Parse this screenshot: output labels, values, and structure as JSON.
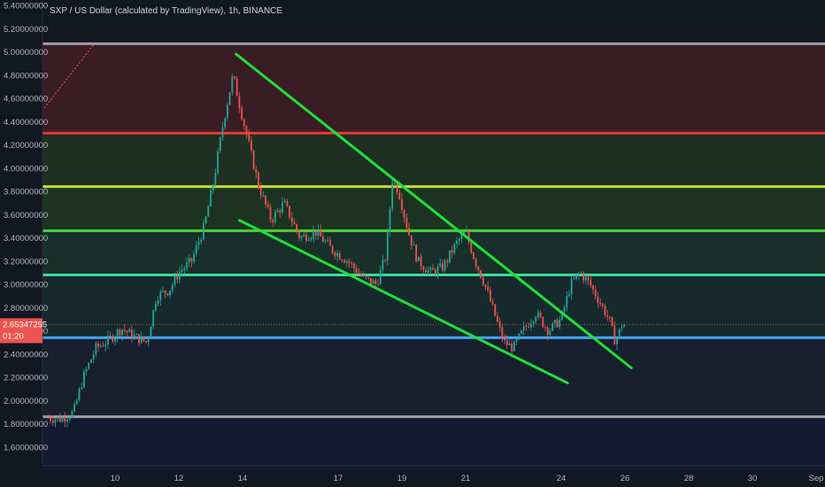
{
  "header": {
    "title": "SXP / US Dollar (calculated by TradingView), 1h, BINANCE"
  },
  "price_tag": {
    "value": "2.65347255",
    "countdown": "01:20"
  },
  "colors": {
    "background": "#131722",
    "up_candle": "#26a69a",
    "down_candle": "#ef5350",
    "trendline": "#1fe03a",
    "price_tag": "#ef5350"
  },
  "chart_data": {
    "type": "candlestick",
    "title": "SXP / US Dollar (calculated by TradingView), 1h, BINANCE",
    "ylim": [
      1.4,
      5.4
    ],
    "y_scale": "linear",
    "grid": false,
    "y_ticks": [
      "5.40000000",
      "5.20000000",
      "5.00000000",
      "4.80000000",
      "4.60000000",
      "4.40000000",
      "4.20000000",
      "4.00000000",
      "3.80000000",
      "3.60000000",
      "3.40000000",
      "3.20000000",
      "3.00000000",
      "2.80000000",
      "2.60000000",
      "2.40000000",
      "2.20000000",
      "2.00000000",
      "1.80000000",
      "1.60000000"
    ],
    "x_ticks": [
      {
        "label": "10",
        "day": 10
      },
      {
        "label": "12",
        "day": 12
      },
      {
        "label": "14",
        "day": 14
      },
      {
        "label": "17",
        "day": 17
      },
      {
        "label": "19",
        "day": 19
      },
      {
        "label": "21",
        "day": 21
      },
      {
        "label": "24",
        "day": 24
      },
      {
        "label": "26",
        "day": 26
      },
      {
        "label": "28",
        "day": 28
      },
      {
        "label": "30",
        "day": 30
      },
      {
        "label": "Sep",
        "day": 32
      }
    ],
    "x_range_days": [
      7.8,
      32
    ],
    "last_price": 2.65347255,
    "zones": [
      {
        "from": 4.3,
        "to": 5.07,
        "color": "#3a1d24"
      },
      {
        "from": 3.84,
        "to": 4.3,
        "color": "#1f2f22"
      },
      {
        "from": 3.46,
        "to": 3.84,
        "color": "#1c3322"
      },
      {
        "from": 3.08,
        "to": 3.46,
        "color": "#183029"
      },
      {
        "from": 2.54,
        "to": 3.08,
        "color": "#162a2e"
      },
      {
        "from": 1.86,
        "to": 2.54,
        "color": "#181f2d"
      },
      {
        "from": 1.4,
        "to": 1.86,
        "color": "#151a33"
      }
    ],
    "levels": [
      {
        "price": 5.07,
        "color": "#9e9e9e"
      },
      {
        "price": 4.3,
        "color": "#e53935"
      },
      {
        "price": 3.84,
        "color": "#c6e03a"
      },
      {
        "price": 3.46,
        "color": "#4cd138"
      },
      {
        "price": 3.08,
        "color": "#3ddc9a"
      },
      {
        "price": 2.54,
        "color": "#42a5f5"
      },
      {
        "price": 1.86,
        "color": "#9e9e9e"
      }
    ],
    "trendlines": [
      {
        "from": [
          13.8,
          4.98
        ],
        "to": [
          26.2,
          2.28
        ]
      },
      {
        "from": [
          13.9,
          3.55
        ],
        "to": [
          24.2,
          2.15
        ]
      }
    ],
    "price_path": [
      [
        7.9,
        1.85
      ],
      [
        8.3,
        1.84
      ],
      [
        8.7,
        1.9
      ],
      [
        9.0,
        2.2
      ],
      [
        9.4,
        2.45
      ],
      [
        9.8,
        2.52
      ],
      [
        10.2,
        2.62
      ],
      [
        10.6,
        2.55
      ],
      [
        11.0,
        2.5
      ],
      [
        11.3,
        2.9
      ],
      [
        11.7,
        2.95
      ],
      [
        12.0,
        3.1
      ],
      [
        12.4,
        3.2
      ],
      [
        12.8,
        3.5
      ],
      [
        13.1,
        3.9
      ],
      [
        13.4,
        4.4
      ],
      [
        13.7,
        4.8
      ],
      [
        13.9,
        4.55
      ],
      [
        14.2,
        4.2
      ],
      [
        14.5,
        3.85
      ],
      [
        14.9,
        3.55
      ],
      [
        15.3,
        3.7
      ],
      [
        15.8,
        3.4
      ],
      [
        16.3,
        3.45
      ],
      [
        16.8,
        3.3
      ],
      [
        17.3,
        3.2
      ],
      [
        17.8,
        3.05
      ],
      [
        18.2,
        3.0
      ],
      [
        18.5,
        3.25
      ],
      [
        18.7,
        3.9
      ],
      [
        18.9,
        3.8
      ],
      [
        19.2,
        3.45
      ],
      [
        19.5,
        3.2
      ],
      [
        19.9,
        3.1
      ],
      [
        20.3,
        3.15
      ],
      [
        20.7,
        3.35
      ],
      [
        21.0,
        3.45
      ],
      [
        21.3,
        3.2
      ],
      [
        21.6,
        3.0
      ],
      [
        21.9,
        2.75
      ],
      [
        22.2,
        2.5
      ],
      [
        22.5,
        2.45
      ],
      [
        22.8,
        2.6
      ],
      [
        23.2,
        2.75
      ],
      [
        23.6,
        2.6
      ],
      [
        24.0,
        2.7
      ],
      [
        24.3,
        3.0
      ],
      [
        24.6,
        3.1
      ],
      [
        24.9,
        3.0
      ],
      [
        25.2,
        2.85
      ],
      [
        25.5,
        2.7
      ],
      [
        25.7,
        2.5
      ],
      [
        25.9,
        2.65
      ],
      [
        26.0,
        2.65
      ]
    ]
  }
}
